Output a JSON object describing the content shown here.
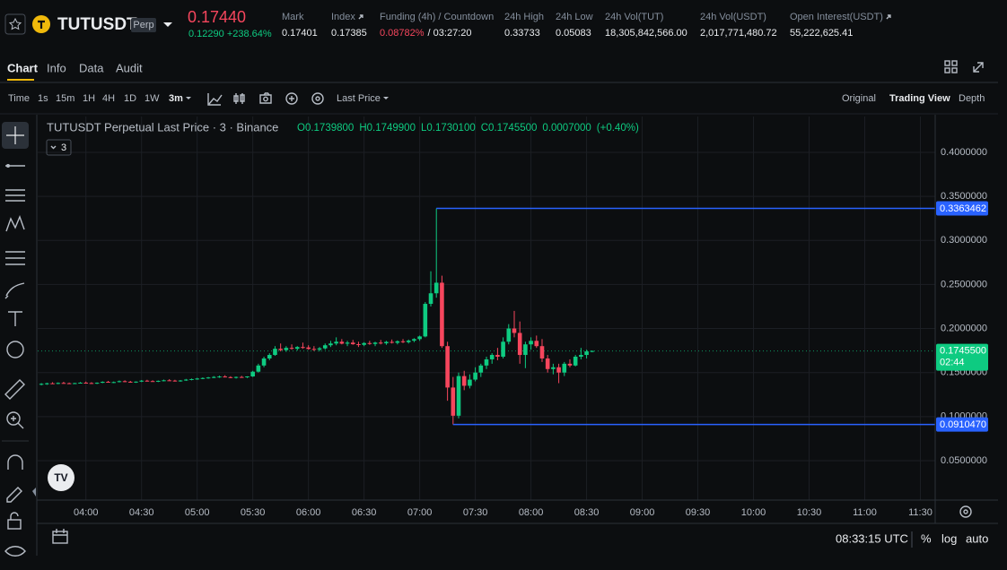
{
  "header": {
    "symbol": "TUTUSDT",
    "badge": "Perp",
    "price": "0.17440",
    "change": "0.12290 +238.64%",
    "stats": [
      {
        "label": "Mark",
        "value": "0.17401"
      },
      {
        "label": "Index",
        "value": "0.17385"
      },
      {
        "label": "Funding (4h) / Countdown",
        "value": "0.08782%",
        "extra": "/ 03:27:20"
      },
      {
        "label": "24h High",
        "value": "0.33733"
      },
      {
        "label": "24h Low",
        "value": "0.05083"
      },
      {
        "label": "24h Vol(TUT)",
        "value": "18,305,842,566.00"
      },
      {
        "label": "24h Vol(USDT)",
        "value": "2,017,771,480.72"
      },
      {
        "label": "Open Interest(USDT)",
        "value": "55,222,625.41"
      }
    ]
  },
  "tabs": [
    "Chart",
    "Info",
    "Data",
    "Audit"
  ],
  "toolbar": {
    "intervals": [
      "Time",
      "1s",
      "15m",
      "1H",
      "4H",
      "1D",
      "1W",
      "3m"
    ],
    "price_type": "Last Price",
    "views": [
      "Original",
      "Trading View",
      "Depth"
    ]
  },
  "chart_data": {
    "type": "candlestick",
    "legend": "TUTUSDT Perpetual Last Price · 3 · Binance",
    "ohlc_legend": [
      "O0.1739800",
      "H0.1749900",
      "L0.1730100",
      "C0.1745500",
      "0.0007000",
      "(+0.40%)"
    ],
    "badge": "3",
    "up_color": "#0ecb81",
    "down_color": "#f6465d",
    "ylim": [
      0.0052,
      0.4407
    ],
    "yticks": [
      {
        "value": 0.05,
        "label": "0.0500000"
      },
      {
        "value": 0.1,
        "label": "0.1000000"
      },
      {
        "value": 0.15,
        "label": "0.1500000"
      },
      {
        "value": 0.2,
        "label": "0.2000000"
      },
      {
        "value": 0.25,
        "label": "0.2500000"
      },
      {
        "value": 0.3,
        "label": "0.3000000"
      },
      {
        "value": 0.35,
        "label": "0.3500000"
      },
      {
        "value": 0.4,
        "label": "0.4000000"
      }
    ],
    "xlim": [
      "03:34",
      "11:38"
    ],
    "xticks": [
      "04:00",
      "04:30",
      "05:00",
      "05:30",
      "06:00",
      "06:30",
      "07:00",
      "07:30",
      "08:00",
      "08:30",
      "09:00",
      "09:30",
      "10:00",
      "10:30",
      "11:00",
      "11:30"
    ],
    "grid": true,
    "price_lines": [
      {
        "value": 0.3363462,
        "label": "0.3363462",
        "start": "07:09",
        "color": "#2962ff"
      },
      {
        "value": 0.091047,
        "label": "0.0910470",
        "start": "07:18",
        "color": "#2962ff"
      }
    ],
    "last_price": {
      "value": 0.17455,
      "label": "0.1745500",
      "countdown": "02:44"
    },
    "x": [
      "03:36",
      "03:39",
      "03:42",
      "03:45",
      "03:48",
      "03:51",
      "03:54",
      "03:57",
      "04:00",
      "04:03",
      "04:06",
      "04:09",
      "04:12",
      "04:15",
      "04:18",
      "04:21",
      "04:24",
      "04:27",
      "04:30",
      "04:33",
      "04:36",
      "04:39",
      "04:42",
      "04:45",
      "04:48",
      "04:51",
      "04:54",
      "04:57",
      "05:00",
      "05:03",
      "05:06",
      "05:09",
      "05:12",
      "05:15",
      "05:18",
      "05:21",
      "05:24",
      "05:27",
      "05:30",
      "05:33",
      "05:36",
      "05:39",
      "05:42",
      "05:45",
      "05:48",
      "05:51",
      "05:54",
      "05:57",
      "06:00",
      "06:03",
      "06:06",
      "06:09",
      "06:12",
      "06:15",
      "06:18",
      "06:21",
      "06:24",
      "06:27",
      "06:30",
      "06:33",
      "06:36",
      "06:39",
      "06:42",
      "06:45",
      "06:48",
      "06:51",
      "06:54",
      "06:57",
      "07:00",
      "07:03",
      "07:06",
      "07:09",
      "07:12",
      "07:15",
      "07:18",
      "07:21",
      "07:24",
      "07:27",
      "07:30",
      "07:33",
      "07:36",
      "07:39",
      "07:42",
      "07:45",
      "07:48",
      "07:51",
      "07:54",
      "07:57",
      "08:00",
      "08:03",
      "08:06",
      "08:09",
      "08:12",
      "08:15",
      "08:18",
      "08:21",
      "08:24",
      "08:27",
      "08:30",
      "08:33"
    ],
    "ohlc": [
      [
        0.1365,
        0.138,
        0.1355,
        0.1372
      ],
      [
        0.1372,
        0.1385,
        0.136,
        0.1378
      ],
      [
        0.1378,
        0.139,
        0.137,
        0.1375
      ],
      [
        0.1375,
        0.1388,
        0.1368,
        0.1382
      ],
      [
        0.1382,
        0.1395,
        0.1374,
        0.1379
      ],
      [
        0.1379,
        0.1386,
        0.1371,
        0.1376
      ],
      [
        0.1376,
        0.1384,
        0.1369,
        0.138
      ],
      [
        0.138,
        0.1392,
        0.1375,
        0.1385
      ],
      [
        0.1385,
        0.1398,
        0.1378,
        0.1381
      ],
      [
        0.1381,
        0.139,
        0.1372,
        0.1377
      ],
      [
        0.1377,
        0.1388,
        0.137,
        0.1384
      ],
      [
        0.1384,
        0.14,
        0.138,
        0.1395
      ],
      [
        0.1395,
        0.1405,
        0.1385,
        0.1389
      ],
      [
        0.1389,
        0.1398,
        0.138,
        0.1392
      ],
      [
        0.1392,
        0.141,
        0.1388,
        0.1402
      ],
      [
        0.1402,
        0.1412,
        0.139,
        0.1396
      ],
      [
        0.1396,
        0.1405,
        0.1385,
        0.139
      ],
      [
        0.139,
        0.14,
        0.1383,
        0.1397
      ],
      [
        0.1397,
        0.1415,
        0.1392,
        0.1408
      ],
      [
        0.1408,
        0.1418,
        0.1398,
        0.1403
      ],
      [
        0.1403,
        0.1412,
        0.1395,
        0.14
      ],
      [
        0.14,
        0.141,
        0.1392,
        0.1406
      ],
      [
        0.1406,
        0.142,
        0.14,
        0.1412
      ],
      [
        0.1412,
        0.1425,
        0.1405,
        0.1409
      ],
      [
        0.1409,
        0.1418,
        0.1398,
        0.1404
      ],
      [
        0.1404,
        0.1415,
        0.1396,
        0.141
      ],
      [
        0.141,
        0.1428,
        0.1405,
        0.142
      ],
      [
        0.142,
        0.1432,
        0.1412,
        0.1426
      ],
      [
        0.1426,
        0.144,
        0.1418,
        0.1432
      ],
      [
        0.1432,
        0.1445,
        0.1425,
        0.1438
      ],
      [
        0.1438,
        0.145,
        0.143,
        0.1444
      ],
      [
        0.1444,
        0.146,
        0.1436,
        0.145
      ],
      [
        0.145,
        0.1465,
        0.144,
        0.1455
      ],
      [
        0.1455,
        0.147,
        0.1445,
        0.1448
      ],
      [
        0.1448,
        0.1458,
        0.1436,
        0.1442
      ],
      [
        0.1442,
        0.1455,
        0.1432,
        0.145
      ],
      [
        0.145,
        0.1462,
        0.144,
        0.1446
      ],
      [
        0.1446,
        0.1458,
        0.1438,
        0.1456
      ],
      [
        0.1456,
        0.152,
        0.145,
        0.151
      ],
      [
        0.151,
        0.16,
        0.15,
        0.158
      ],
      [
        0.158,
        0.168,
        0.156,
        0.166
      ],
      [
        0.166,
        0.172,
        0.164,
        0.17
      ],
      [
        0.17,
        0.18,
        0.169,
        0.177
      ],
      [
        0.177,
        0.183,
        0.174,
        0.1755
      ],
      [
        0.1755,
        0.18,
        0.1735,
        0.178
      ],
      [
        0.178,
        0.182,
        0.176,
        0.177
      ],
      [
        0.177,
        0.18,
        0.175,
        0.179
      ],
      [
        0.179,
        0.184,
        0.177,
        0.1785
      ],
      [
        0.1785,
        0.181,
        0.176,
        0.1768
      ],
      [
        0.1768,
        0.18,
        0.1745,
        0.176
      ],
      [
        0.176,
        0.179,
        0.174,
        0.1775
      ],
      [
        0.1775,
        0.183,
        0.176,
        0.181
      ],
      [
        0.181,
        0.186,
        0.179,
        0.183
      ],
      [
        0.183,
        0.19,
        0.181,
        0.185
      ],
      [
        0.185,
        0.188,
        0.182,
        0.1828
      ],
      [
        0.1828,
        0.186,
        0.18,
        0.184
      ],
      [
        0.184,
        0.187,
        0.1815,
        0.1822
      ],
      [
        0.1822,
        0.185,
        0.179,
        0.1815
      ],
      [
        0.1815,
        0.1845,
        0.18,
        0.1835
      ],
      [
        0.1835,
        0.186,
        0.1815,
        0.1825
      ],
      [
        0.1825,
        0.185,
        0.18,
        0.184
      ],
      [
        0.184,
        0.187,
        0.182,
        0.1832
      ],
      [
        0.1832,
        0.186,
        0.1815,
        0.1848
      ],
      [
        0.1848,
        0.1875,
        0.183,
        0.1838
      ],
      [
        0.1838,
        0.1865,
        0.182,
        0.1855
      ],
      [
        0.1855,
        0.188,
        0.1835,
        0.1845
      ],
      [
        0.1845,
        0.1875,
        0.183,
        0.1862
      ],
      [
        0.1862,
        0.189,
        0.1845,
        0.188
      ],
      [
        0.188,
        0.192,
        0.186,
        0.191
      ],
      [
        0.191,
        0.23,
        0.19,
        0.228
      ],
      [
        0.228,
        0.265,
        0.225,
        0.24
      ],
      [
        0.24,
        0.3363,
        0.235,
        0.252
      ],
      [
        0.252,
        0.26,
        0.178,
        0.18
      ],
      [
        0.18,
        0.185,
        0.118,
        0.133
      ],
      [
        0.133,
        0.145,
        0.091,
        0.101
      ],
      [
        0.101,
        0.15,
        0.098,
        0.146
      ],
      [
        0.146,
        0.152,
        0.13,
        0.135
      ],
      [
        0.135,
        0.148,
        0.132,
        0.142
      ],
      [
        0.142,
        0.156,
        0.14,
        0.15
      ],
      [
        0.15,
        0.16,
        0.145,
        0.158
      ],
      [
        0.158,
        0.168,
        0.154,
        0.165
      ],
      [
        0.165,
        0.172,
        0.16,
        0.17
      ],
      [
        0.17,
        0.178,
        0.164,
        0.168
      ],
      [
        0.168,
        0.19,
        0.166,
        0.185
      ],
      [
        0.185,
        0.205,
        0.182,
        0.2
      ],
      [
        0.2,
        0.22,
        0.19,
        0.195
      ],
      [
        0.195,
        0.208,
        0.16,
        0.17
      ],
      [
        0.17,
        0.185,
        0.155,
        0.182
      ],
      [
        0.182,
        0.19,
        0.176,
        0.186
      ],
      [
        0.186,
        0.192,
        0.178,
        0.18
      ],
      [
        0.18,
        0.188,
        0.162,
        0.166
      ],
      [
        0.166,
        0.17,
        0.15,
        0.154
      ],
      [
        0.154,
        0.16,
        0.148,
        0.156
      ],
      [
        0.156,
        0.16,
        0.138,
        0.15
      ],
      [
        0.15,
        0.162,
        0.146,
        0.16
      ],
      [
        0.16,
        0.165,
        0.156,
        0.158
      ],
      [
        0.158,
        0.17,
        0.157,
        0.168
      ],
      [
        0.168,
        0.178,
        0.165,
        0.17
      ],
      [
        0.17,
        0.176,
        0.166,
        0.174
      ],
      [
        0.17398,
        0.17499,
        0.17301,
        0.17455
      ]
    ]
  },
  "footer": {
    "clock": "08:33:15 UTC",
    "percent": "%",
    "log": "log",
    "auto": "auto"
  }
}
